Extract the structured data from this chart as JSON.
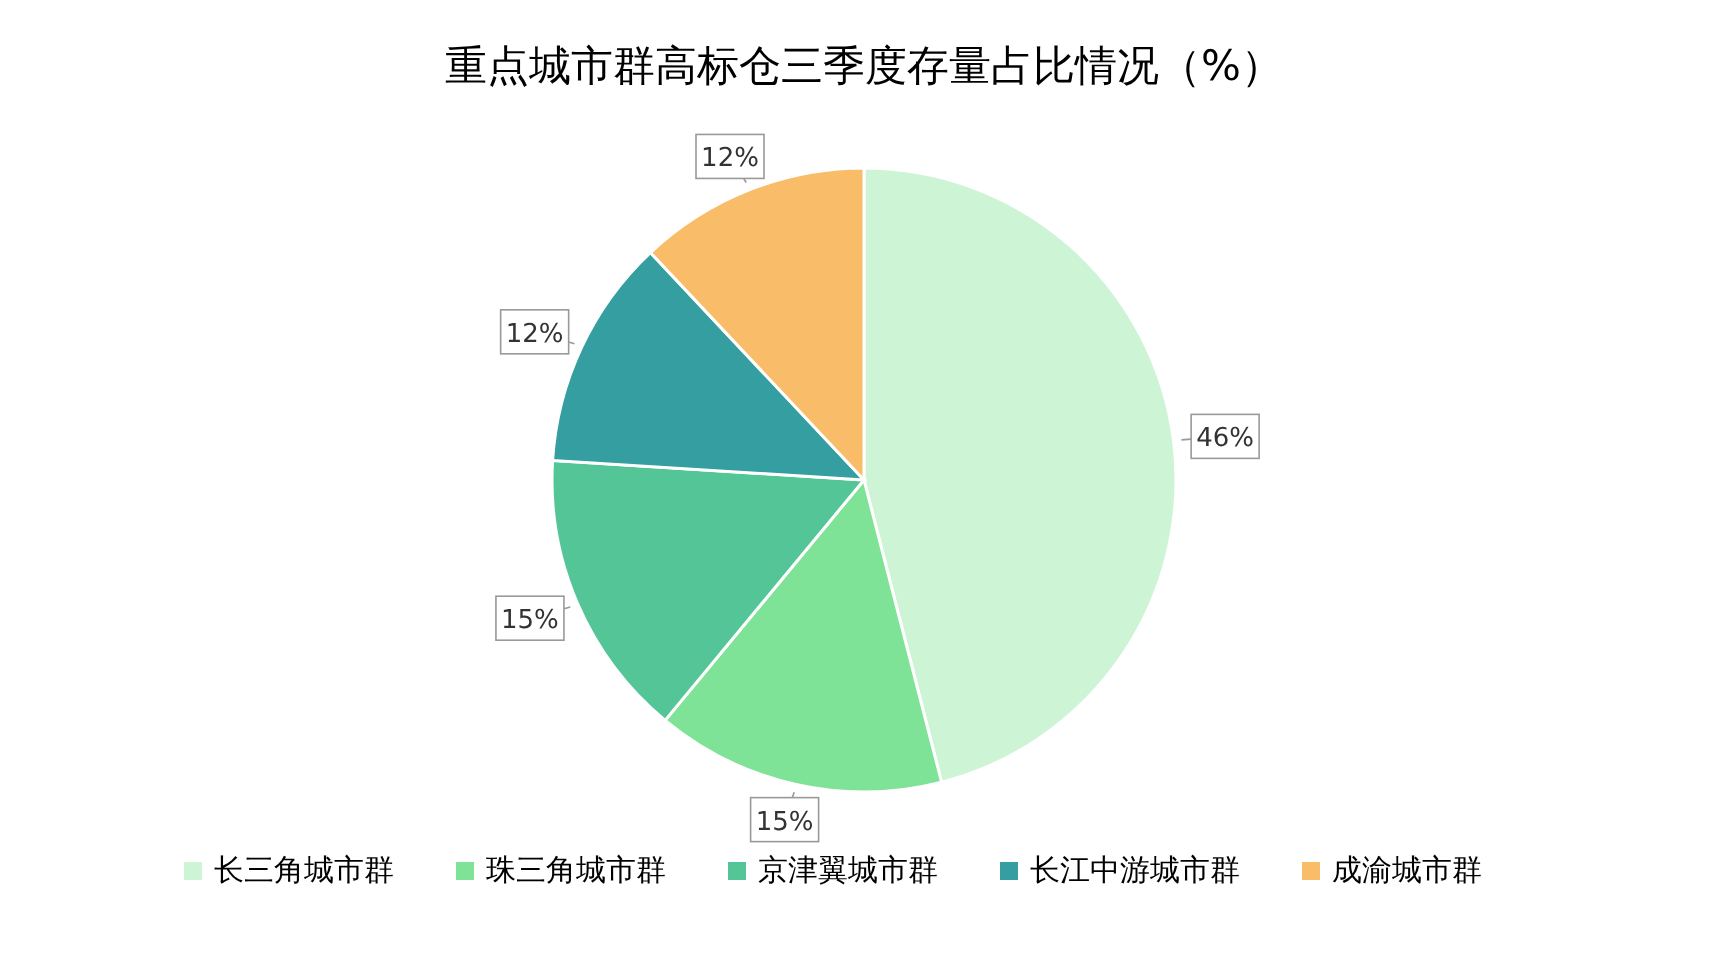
{
  "chart_data": {
    "type": "pie",
    "title": "重点城市群高标仓三季度存量占比情况（%）",
    "categories": [
      "长三角城市群",
      "珠三角城市群",
      "京津翼城市群",
      "长江中游城市群",
      "成渝城市群"
    ],
    "values": [
      46,
      15,
      15,
      12,
      12
    ],
    "colors": [
      "#cef4d6",
      "#7ee396",
      "#54c596",
      "#349ea0",
      "#f9bd6a"
    ],
    "value_labels": [
      "46%",
      "15%",
      "15%",
      "12%",
      "12%"
    ],
    "legend": "bottom"
  }
}
